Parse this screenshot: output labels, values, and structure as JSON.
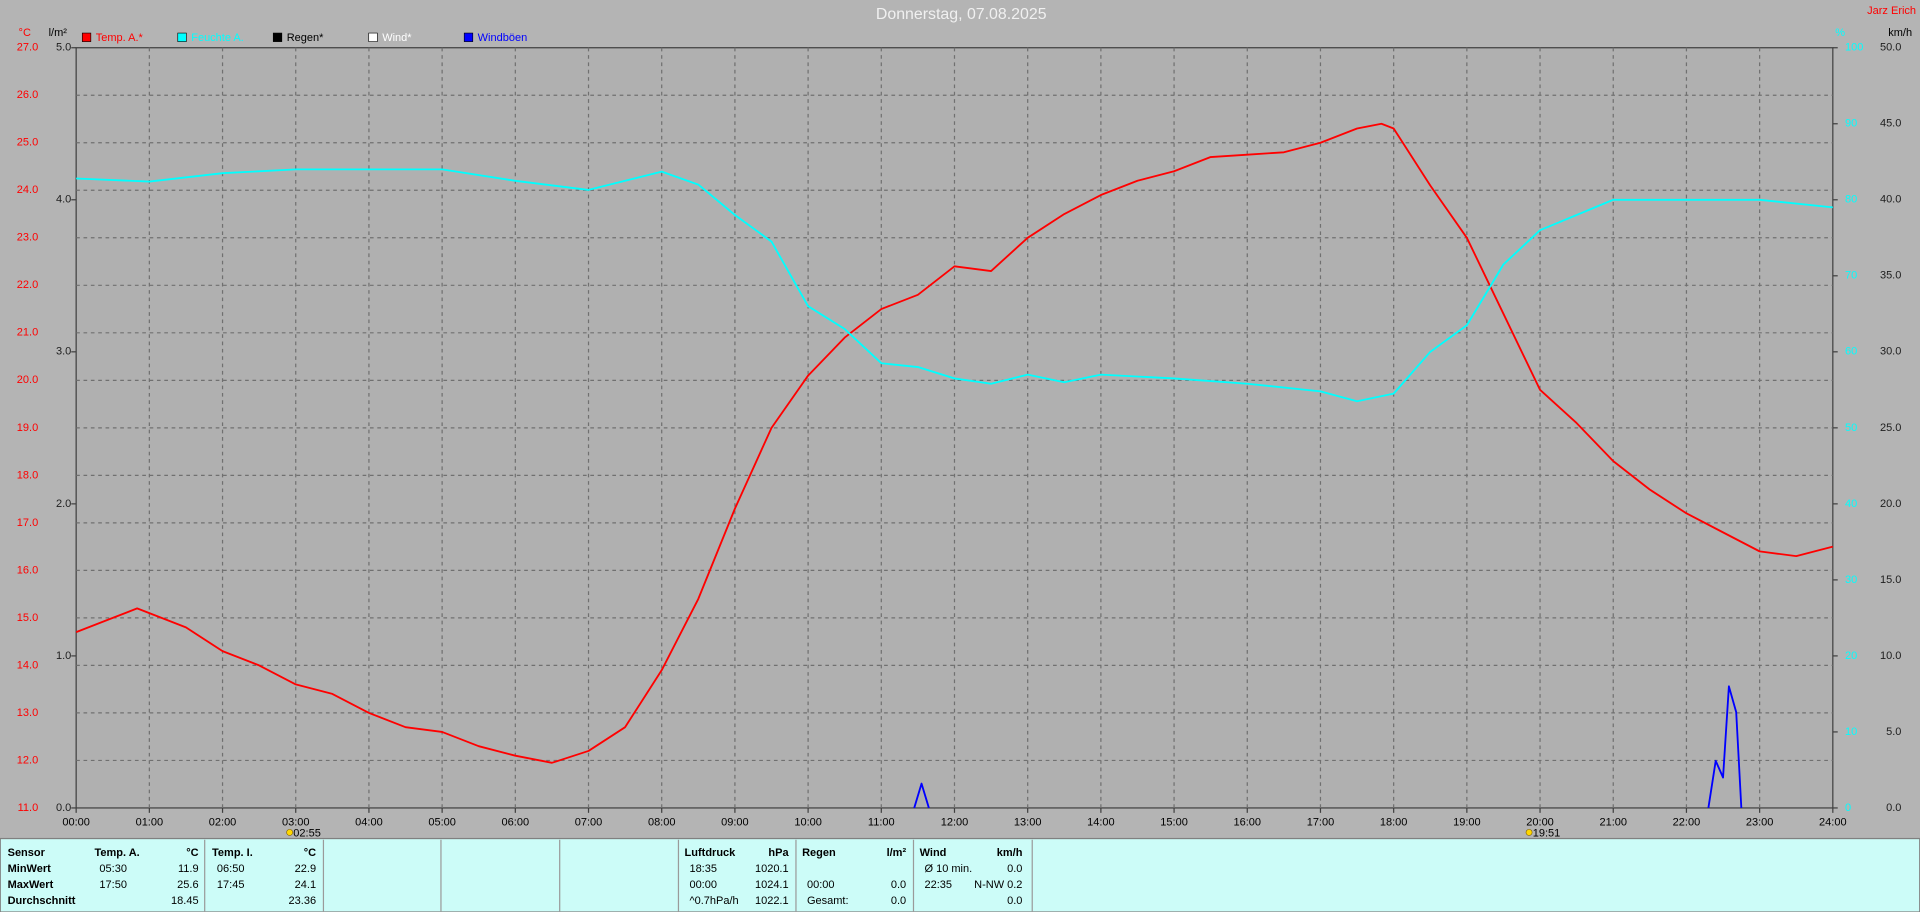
{
  "chart_data": {
    "type": "line",
    "title": "Donnerstag, 07.08.2025",
    "author": "Jarz Erich",
    "y_label": "°C",
    "y2_label": "l/m²",
    "y3_label": "%",
    "y4_label": "km/h",
    "xlim": [
      0,
      24
    ],
    "xticks": [
      {
        "value": 0,
        "label": "00:00"
      },
      {
        "value": 1,
        "label": "01:00"
      },
      {
        "value": 2,
        "label": "02:00"
      },
      {
        "value": 3,
        "label": "03:00"
      },
      {
        "value": 4,
        "label": "04:00"
      },
      {
        "value": 5,
        "label": "05:00"
      },
      {
        "value": 6,
        "label": "06:00"
      },
      {
        "value": 7,
        "label": "07:00"
      },
      {
        "value": 8,
        "label": "08:00"
      },
      {
        "value": 9,
        "label": "09:00"
      },
      {
        "value": 10,
        "label": "10:00"
      },
      {
        "value": 11,
        "label": "11:00"
      },
      {
        "value": 12,
        "label": "12:00"
      },
      {
        "value": 13,
        "label": "13:00"
      },
      {
        "value": 14,
        "label": "14:00"
      },
      {
        "value": 15,
        "label": "15:00"
      },
      {
        "value": 16,
        "label": "16:00"
      },
      {
        "value": 17,
        "label": "17:00"
      },
      {
        "value": 18,
        "label": "18:00"
      },
      {
        "value": 19,
        "label": "19:00"
      },
      {
        "value": 20,
        "label": "20:00"
      },
      {
        "value": 21,
        "label": "21:00"
      },
      {
        "value": 22,
        "label": "22:00"
      },
      {
        "value": 23,
        "label": "23:00"
      },
      {
        "value": 24,
        "label": "24:00"
      }
    ],
    "sun_markers": [
      {
        "value": 2.9167,
        "label": "02:55"
      },
      {
        "value": 19.85,
        "label": "19:51"
      }
    ],
    "ylim": [
      11,
      27
    ],
    "yticks": [
      {
        "value": 11,
        "label": "11.0"
      },
      {
        "value": 12,
        "label": "12.0"
      },
      {
        "value": 13,
        "label": "13.0"
      },
      {
        "value": 14,
        "label": "14.0"
      },
      {
        "value": 15,
        "label": "15.0"
      },
      {
        "value": 16,
        "label": "16.0"
      },
      {
        "value": 17,
        "label": "17.0"
      },
      {
        "value": 18,
        "label": "18.0"
      },
      {
        "value": 19,
        "label": "19.0"
      },
      {
        "value": 20,
        "label": "20.0"
      },
      {
        "value": 21,
        "label": "21.0"
      },
      {
        "value": 22,
        "label": "22.0"
      },
      {
        "value": 23,
        "label": "23.0"
      },
      {
        "value": 24,
        "label": "24.0"
      },
      {
        "value": 25,
        "label": "25.0"
      },
      {
        "value": 26,
        "label": "26.0"
      },
      {
        "value": 27,
        "label": "27.0"
      }
    ],
    "y2lim": [
      0,
      5
    ],
    "y2ticks": [
      {
        "value": 0,
        "label": "0.0"
      },
      {
        "value": 1,
        "label": "1.0"
      },
      {
        "value": 2,
        "label": "2.0"
      },
      {
        "value": 3,
        "label": "3.0"
      },
      {
        "value": 4,
        "label": "4.0"
      },
      {
        "value": 5,
        "label": "5.0"
      }
    ],
    "y3lim": [
      0,
      100
    ],
    "y3ticks": [
      0,
      10,
      20,
      30,
      40,
      50,
      60,
      70,
      80,
      90,
      100
    ],
    "y4lim": [
      0,
      50
    ],
    "y4ticks": [
      {
        "value": 0,
        "label": "0.0"
      },
      {
        "value": 5,
        "label": "5.0"
      },
      {
        "value": 10,
        "label": "10.0"
      },
      {
        "value": 15,
        "label": "15.0"
      },
      {
        "value": 20,
        "label": "20.0"
      },
      {
        "value": 25,
        "label": "25.0"
      },
      {
        "value": 30,
        "label": "30.0"
      },
      {
        "value": 35,
        "label": "35.0"
      },
      {
        "value": 40,
        "label": "40.0"
      },
      {
        "value": 45,
        "label": "45.0"
      },
      {
        "value": 50,
        "label": "50.0"
      }
    ],
    "grid": true,
    "series": [
      {
        "name": "Temp. A.*",
        "color": "#ff0000",
        "axis": "y",
        "x": [
          0,
          0.5,
          0.8333,
          1,
          1.5,
          2,
          2.5,
          3,
          3.5,
          4,
          4.5,
          5,
          5.5,
          6,
          6.5,
          7,
          7.5,
          8,
          8.5,
          9,
          9.5,
          10,
          10.5,
          11,
          11.5,
          12,
          12.5,
          13,
          13.5,
          14,
          14.5,
          15,
          15.5,
          16,
          16.5,
          17,
          17.5,
          17.8333,
          18,
          18.5,
          19,
          19.5,
          20,
          20.5,
          21,
          21.5,
          22,
          22.5,
          23,
          23.5,
          24
        ],
        "values": [
          14.7,
          15.0,
          15.2,
          15.1,
          14.8,
          14.3,
          14.0,
          13.6,
          13.4,
          13.0,
          12.7,
          12.6,
          12.3,
          12.1,
          11.95,
          12.2,
          12.7,
          13.9,
          15.4,
          17.3,
          19.0,
          20.1,
          20.9,
          21.5,
          21.8,
          22.4,
          22.3,
          23.0,
          23.5,
          23.9,
          24.2,
          24.4,
          24.7,
          24.75,
          24.8,
          25.0,
          25.3,
          25.4,
          25.3,
          24.1,
          23.0,
          21.4,
          19.8,
          19.1,
          18.3,
          17.7,
          17.2,
          16.8,
          16.4,
          16.3,
          16.5
        ]
      },
      {
        "name": "Feuchte A.",
        "color": "#00ffff",
        "axis": "y3",
        "x": [
          0,
          1,
          2,
          3,
          4,
          5,
          6,
          7,
          8,
          8.5,
          9,
          9.5,
          10,
          10.5,
          11,
          11.5,
          12,
          12.5,
          13,
          13.5,
          14,
          15,
          16,
          17,
          17.5,
          18,
          18.5,
          19,
          19.5,
          20,
          20.5,
          21,
          22,
          23,
          24
        ],
        "values": [
          82.8,
          82.4,
          83.5,
          84,
          84,
          84,
          82.5,
          81.3,
          83.7,
          82,
          78,
          74.5,
          66,
          63,
          58.5,
          58,
          56.5,
          55.8,
          57,
          56,
          57,
          56.5,
          55.8,
          54.8,
          53.5,
          54.5,
          60,
          63.5,
          71.5,
          76,
          78,
          80,
          80,
          80,
          79
        ]
      },
      {
        "name": "Regen*",
        "color": "#000000",
        "axis": "y2",
        "x": [],
        "values": []
      },
      {
        "name": "Wind*",
        "color": "#ffffff",
        "axis": "y4",
        "x": [],
        "values": []
      },
      {
        "name": "Windböen",
        "color": "#0000ff",
        "axis": "y4",
        "x": [
          11.45,
          11.55,
          11.65,
          null,
          22.3,
          22.4,
          22.5,
          22.58,
          22.68,
          22.75
        ],
        "values": [
          0,
          1.6,
          0,
          null,
          0,
          3.1,
          2.0,
          8.0,
          6.3,
          0
        ]
      }
    ]
  },
  "table": {
    "header": [
      "Sensor",
      "Temp. A.",
      "°C",
      "Temp. I.",
      "°C",
      "Luftdruck",
      "hPa",
      "Regen",
      "l/m²",
      "Wind",
      "km/h"
    ],
    "rows": [
      [
        "MinWert",
        "05:30",
        "11.9",
        "06:50",
        "22.9",
        "18:35",
        "1020.1",
        null,
        null,
        "Ø 10 min.",
        "0.0"
      ],
      [
        "MaxWert",
        "17:50",
        "25.6",
        "17:45",
        "24.1",
        "00:00",
        "1024.1",
        "00:00",
        "0.0",
        "22:35",
        "N-NW 0.2"
      ],
      [
        "Durchschnitt",
        null,
        "18.45",
        null,
        "23.36",
        "^0.7hPa/h",
        "1022.1",
        "Gesamt:",
        "0.0",
        null,
        "0.0"
      ]
    ]
  }
}
